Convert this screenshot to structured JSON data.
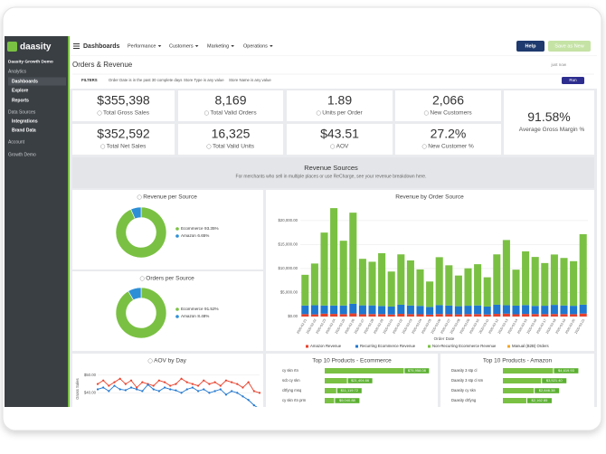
{
  "sidebar": {
    "logo": "daasity",
    "org": "Daasity Growth Demo",
    "items": [
      "Analytics",
      "Dashboards",
      "Explore",
      "Reports",
      "Data Sources",
      "Integrations",
      "Brand Data",
      "Account",
      "Growth Demo"
    ]
  },
  "topbar": {
    "section": "Dashboards",
    "menus": [
      "Performance",
      "Customers",
      "Marketing",
      "Operations"
    ],
    "help": "Help",
    "save": "Save as New"
  },
  "header": {
    "title": "Orders & Revenue",
    "updated": "just now"
  },
  "filters": {
    "label": "FILTERS",
    "items": [
      "Order Date is in the past 30 complete days",
      "Store Type is any value",
      "Store Name is any value"
    ],
    "run": "Run"
  },
  "kpis": [
    {
      "value": "$355,398",
      "label": "Total Gross Sales"
    },
    {
      "value": "8,169",
      "label": "Total Valid Orders"
    },
    {
      "value": "1.89",
      "label": "Units per Order"
    },
    {
      "value": "2,066",
      "label": "New Customers"
    },
    {
      "value": "$352,592",
      "label": "Total Net Sales"
    },
    {
      "value": "16,325",
      "label": "Total Valid Units"
    },
    {
      "value": "$43.51",
      "label": "AOV"
    },
    {
      "value": "27.2%",
      "label": "New Customer %"
    },
    {
      "value": "91.58%",
      "label": "Average Gross Margin %"
    }
  ],
  "section": {
    "title": "Revenue Sources",
    "subtitle": "For merchants who sell in multiple places or use ReCharge, see your revenue breakdown here."
  },
  "revenue_per_source": {
    "type": "pie",
    "title": "Revenue per Source",
    "categories": [
      "Ecommerce",
      "Amazon"
    ],
    "values": [
      93.35,
      6.65
    ],
    "value_labels": [
      "93.35%",
      "6.65%"
    ],
    "colors": [
      "#7ac143",
      "#2d8fd5"
    ]
  },
  "orders_per_source": {
    "type": "pie",
    "title": "Orders per Source",
    "categories": [
      "Ecommerce",
      "Amazon"
    ],
    "values": [
      91.52,
      8.48
    ],
    "value_labels": [
      "91.52%",
      "8.48%"
    ],
    "colors": [
      "#7ac143",
      "#2d8fd5"
    ]
  },
  "revenue_by_source": {
    "type": "bar",
    "stacked": true,
    "title": "Revenue by Order Source",
    "x_label": "Order Date",
    "categories": [
      "2020-02-21",
      "2020-02-22",
      "2020-02-23",
      "2020-02-24",
      "2020-02-25",
      "2020-02-26",
      "2020-02-27",
      "2020-02-28",
      "2020-02-29",
      "2020-03-01",
      "2020-03-02",
      "2020-03-03",
      "2020-03-04",
      "2020-03-05",
      "2020-03-06",
      "2020-03-07",
      "2020-03-08",
      "2020-03-09",
      "2020-03-10",
      "2020-03-11",
      "2020-03-12",
      "2020-03-13",
      "2020-03-14",
      "2020-03-15",
      "2020-03-16",
      "2020-03-17",
      "2020-03-18",
      "2020-03-19",
      "2020-03-20",
      "2020-03-21"
    ],
    "series": [
      {
        "name": "Amazon Revenue",
        "color": "#e8412c",
        "values": [
          500,
          450,
          600,
          550,
          500,
          650,
          480,
          520,
          500,
          430,
          560,
          500,
          470,
          400,
          520,
          480,
          450,
          500,
          510,
          430,
          560,
          600,
          470,
          540,
          520,
          500,
          530,
          510,
          490,
          620
        ]
      },
      {
        "name": "Recurring Ecommerce Revenue",
        "color": "#1f77d0",
        "values": [
          1800,
          1900,
          1700,
          1750,
          1800,
          2000,
          1850,
          1800,
          1700,
          1650,
          1900,
          1800,
          1750,
          1600,
          1850,
          1800,
          1700,
          1750,
          1800,
          1650,
          1900,
          1750,
          1800,
          1850,
          1700,
          1750,
          1900,
          1800,
          1750,
          1850
        ]
      },
      {
        "name": "Non-Recurring Ecommerce Revenue",
        "color": "#7ac143",
        "values": [
          6400,
          8700,
          15200,
          20300,
          13500,
          19000,
          9700,
          9100,
          11000,
          7300,
          10500,
          9400,
          7600,
          5300,
          10000,
          8400,
          6400,
          7800,
          8600,
          6100,
          10500,
          13600,
          7500,
          11200,
          10200,
          8900,
          10500,
          9900,
          9300,
          14700
        ]
      },
      {
        "name": "Manual (B2B) Orders",
        "color": "#f5a623",
        "values": [
          0,
          0,
          0,
          0,
          0,
          0,
          0,
          0,
          0,
          0,
          0,
          0,
          0,
          0,
          0,
          0,
          0,
          0,
          0,
          0,
          0,
          0,
          0,
          0,
          0,
          0,
          0,
          0,
          0,
          0
        ]
      }
    ],
    "ylim": [
      0,
      23000
    ],
    "yticks": [
      {
        "value": 0,
        "label": "$0.00"
      },
      {
        "value": 5000,
        "label": "$5,000.00"
      },
      {
        "value": 10000,
        "label": "$10,000.00"
      },
      {
        "value": 15000,
        "label": "$15,000.00"
      },
      {
        "value": 20000,
        "label": "$20,000.00"
      }
    ],
    "grid": true
  },
  "aov_by_day": {
    "type": "line",
    "title": "AOV by Day",
    "y_label": "Gross Sales",
    "series": [
      {
        "color": "#e8412c",
        "values": [
          45,
          47,
          44,
          46,
          48,
          45,
          47,
          43,
          46,
          45,
          44,
          47,
          46,
          44,
          45,
          48,
          46,
          45,
          44,
          47,
          45,
          46,
          44,
          47,
          46,
          45,
          43,
          46,
          41,
          40
        ]
      },
      {
        "color": "#1f77d0",
        "values": [
          42,
          43,
          41,
          44,
          42,
          41.5,
          43,
          42,
          41,
          44.6,
          42,
          41,
          43,
          42,
          41.4,
          40,
          42,
          43,
          41,
          42,
          40,
          41,
          42,
          39,
          41,
          40,
          38,
          36,
          33,
          31
        ]
      }
    ],
    "ylim": [
      30,
      55
    ],
    "yticks": [
      {
        "value": 50,
        "label": "$50.00"
      },
      {
        "value": 40,
        "label": "$40.00"
      }
    ]
  },
  "top_ecommerce": {
    "type": "hbar",
    "title": "Top 10 Products - Ecommerce",
    "categories": [
      "cy skn rtn",
      "scb cy skn",
      "cltfyng msq",
      "cy skn rtn prm"
    ],
    "values": [
      75958.08,
      21404.66,
      11119.72,
      9040.88
    ],
    "value_labels": [
      "$75,958.08",
      "$21,404.66",
      "$11,119.72",
      "$9,040.88"
    ],
    "color": "#7ac143",
    "xlim": [
      0,
      80000
    ]
  },
  "top_amazon": {
    "type": "hbar",
    "title": "Top 10 Products - Amazon",
    "categories": [
      "Daasity 3 stp cl",
      "Daasity 3 stp cl sm",
      "Daasity cy skn",
      "Daasity cltfyng"
    ],
    "values": [
      4619.93,
      3521.4,
      2846.38,
      2162.85
    ],
    "value_labels": [
      "$4,619.93",
      "$3,521.40",
      "$2,846.38",
      "$2,162.85"
    ],
    "color": "#7ac143",
    "xlim": [
      0,
      5000
    ]
  }
}
